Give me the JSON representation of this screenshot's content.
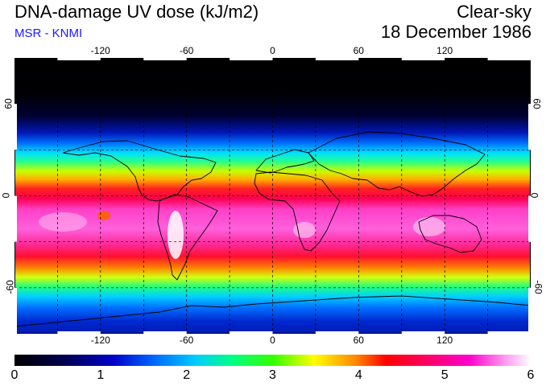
{
  "header": {
    "title": "DNA-damage UV dose (kJ/m2)",
    "source": "MSR - KNMI",
    "sky_condition": "Clear-sky",
    "date": "18 December 1986"
  },
  "map": {
    "projection": "equirectangular",
    "lon_range": [
      -180,
      180
    ],
    "lat_range": [
      -90,
      90
    ],
    "top_ticks": [
      "-120",
      "-60",
      "0",
      "60",
      "120"
    ],
    "bottom_ticks": [
      "-120",
      "-60",
      "0",
      "60",
      "120"
    ],
    "left_ticks": [
      "60",
      "0",
      "-60"
    ],
    "right_ticks": [
      "60",
      "0",
      "-60"
    ],
    "gridlines": "dashed every 30 degrees"
  },
  "colorbar": {
    "min": 0,
    "max": 6,
    "ticks": [
      "0",
      "1",
      "2",
      "3",
      "4",
      "5",
      "6"
    ],
    "colors": [
      "#000000",
      "#0000c8",
      "#00aaff",
      "#00ff88",
      "#ffff00",
      "#ff0000",
      "#ff00cc",
      "#ffffff"
    ]
  }
}
